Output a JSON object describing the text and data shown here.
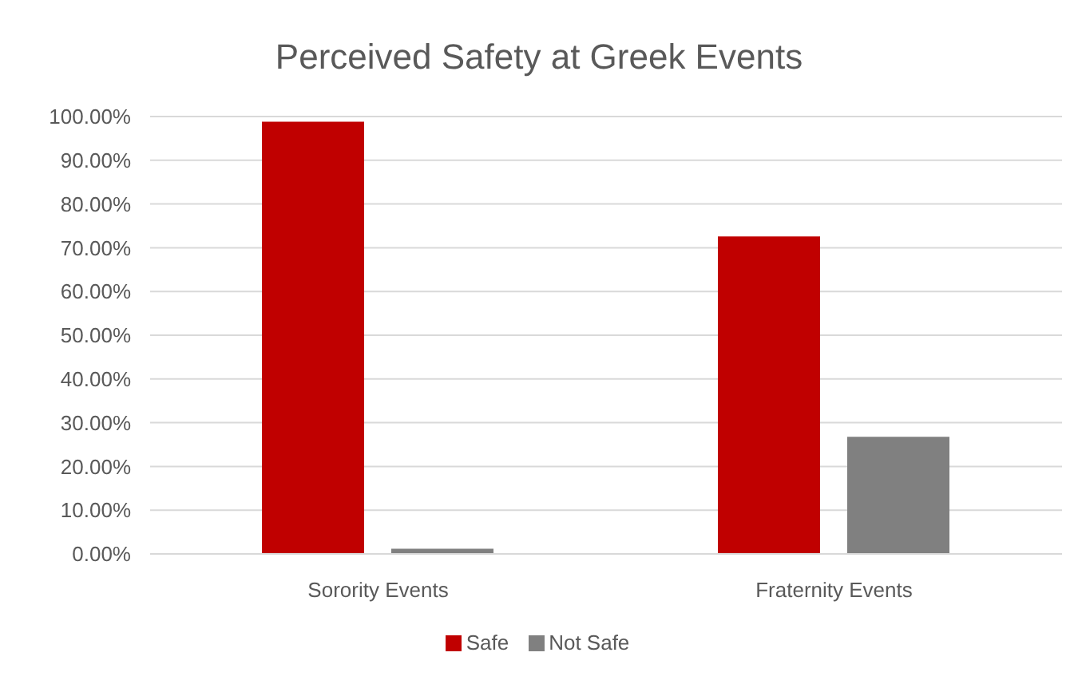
{
  "chart_data": {
    "type": "bar",
    "title": "Perceived Safety at Greek Events",
    "categories": [
      "Sorority Events",
      "Fraternity Events"
    ],
    "series": [
      {
        "name": "Safe",
        "color": "#c00000",
        "values": [
          98.8,
          72.6
        ]
      },
      {
        "name": "Not Safe",
        "color": "#808080",
        "values": [
          1.2,
          26.8
        ]
      }
    ],
    "ylim": [
      0,
      100
    ],
    "yticks": [
      {
        "value": 0,
        "label": "0.00%"
      },
      {
        "value": 10,
        "label": "10.00%"
      },
      {
        "value": 20,
        "label": "20.00%"
      },
      {
        "value": 30,
        "label": "30.00%"
      },
      {
        "value": 40,
        "label": "40.00%"
      },
      {
        "value": 50,
        "label": "50.00%"
      },
      {
        "value": 60,
        "label": "60.00%"
      },
      {
        "value": 70,
        "label": "70.00%"
      },
      {
        "value": 80,
        "label": "80.00%"
      },
      {
        "value": 90,
        "label": "90.00%"
      },
      {
        "value": 100,
        "label": "100.00%"
      }
    ],
    "grid": "y",
    "legend": "bottom"
  }
}
